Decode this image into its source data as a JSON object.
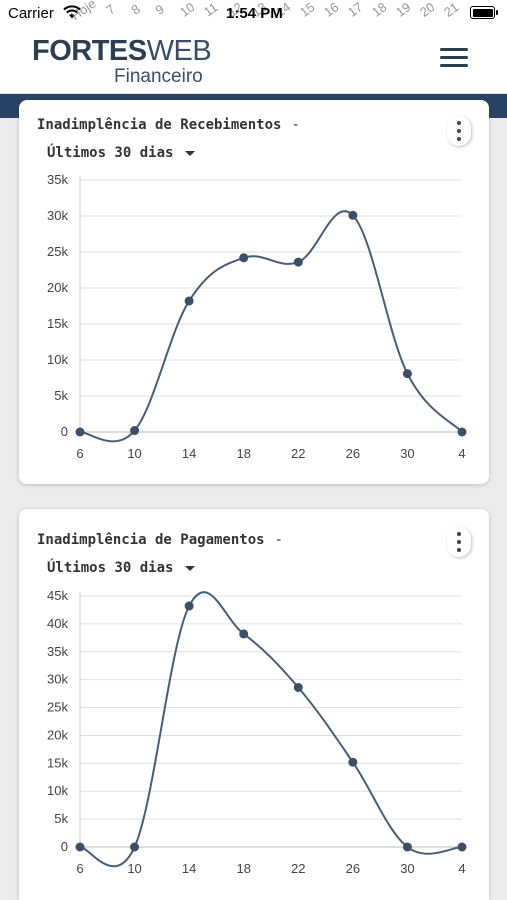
{
  "status": {
    "carrier": "Carrier",
    "time": "1:54 PM"
  },
  "ghost_labels": [
    "Hoje",
    "7",
    "8",
    "9",
    "10",
    "11",
    "12",
    "13",
    "14",
    "15",
    "16",
    "17",
    "18",
    "19",
    "20",
    "21"
  ],
  "header": {
    "logo_bold": "FORTES",
    "logo_light": "WEB",
    "logo_sub": "Financeiro"
  },
  "colors": {
    "brand": "#2d3e50",
    "nav_band": "#2a4365",
    "line": "#4a5d75",
    "point": "#3d4f66",
    "grid": "#e0e0e0"
  },
  "cards": [
    {
      "title": "Inadimplência de Recebimentos",
      "dash": "-",
      "period": "Últimos 30 dias"
    },
    {
      "title": "Inadimplência de Pagamentos",
      "dash": "-",
      "period": "Últimos 30 dias"
    }
  ],
  "chart_data": [
    {
      "type": "line",
      "title": "Inadimplência de Recebimentos",
      "categories": [
        "6",
        "10",
        "14",
        "18",
        "22",
        "26",
        "30",
        "4"
      ],
      "values": [
        0,
        200,
        18200,
        24200,
        23600,
        30100,
        8100,
        0
      ],
      "ylim": [
        0,
        35000
      ],
      "yticks": [
        "0",
        "5k",
        "10k",
        "15k",
        "20k",
        "25k",
        "30k",
        "35k"
      ],
      "grid": true
    },
    {
      "type": "line",
      "title": "Inadimplência de Pagamentos",
      "categories": [
        "6",
        "10",
        "14",
        "18",
        "22",
        "26",
        "30",
        "4"
      ],
      "values": [
        0,
        0,
        43200,
        38200,
        28600,
        15200,
        0,
        0
      ],
      "ylim": [
        0,
        45000
      ],
      "yticks": [
        "0",
        "5k",
        "10k",
        "15k",
        "20k",
        "25k",
        "30k",
        "35k",
        "40k",
        "45k"
      ],
      "grid": true
    }
  ]
}
